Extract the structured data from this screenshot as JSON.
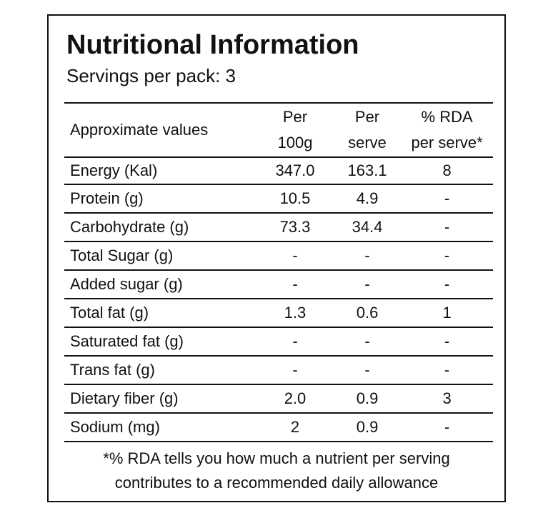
{
  "label": {
    "title": "Nutritional Information",
    "servings": "Servings per pack: 3"
  },
  "table": {
    "headers": {
      "name": "Approximate values",
      "per100_line1": "Per",
      "per100_line2": "100g",
      "perserve_line1": "Per",
      "perserve_line2": "serve",
      "rda_line1": "% RDA",
      "rda_line2": "per serve*"
    },
    "rows": [
      {
        "name": "Energy (Kal)",
        "per100": "347.0",
        "perserve": "163.1",
        "rda": "8"
      },
      {
        "name": "Protein (g)",
        "per100": "10.5",
        "perserve": "4.9",
        "rda": "-"
      },
      {
        "name": "Carbohydrate (g)",
        "per100": "73.3",
        "perserve": "34.4",
        "rda": "-"
      },
      {
        "name": "Total Sugar (g)",
        "per100": "-",
        "perserve": "-",
        "rda": "-"
      },
      {
        "name": "Added sugar (g)",
        "per100": "-",
        "perserve": "-",
        "rda": "-"
      },
      {
        "name": "Total fat (g)",
        "per100": "1.3",
        "perserve": "0.6",
        "rda": "1"
      },
      {
        "name": "Saturated fat (g)",
        "per100": "-",
        "perserve": "-",
        "rda": "-"
      },
      {
        "name": "Trans fat (g)",
        "per100": "-",
        "perserve": "-",
        "rda": "-"
      },
      {
        "name": "Dietary fiber (g)",
        "per100": "2.0",
        "perserve": "0.9",
        "rda": "3"
      },
      {
        "name": "Sodium (mg)",
        "per100": "2",
        "perserve": "0.9",
        "rda": "-"
      }
    ]
  },
  "footnote": {
    "line1": "*% RDA tells you how much a nutrient per serving",
    "line2": "contributes to a recommended daily allowance"
  }
}
